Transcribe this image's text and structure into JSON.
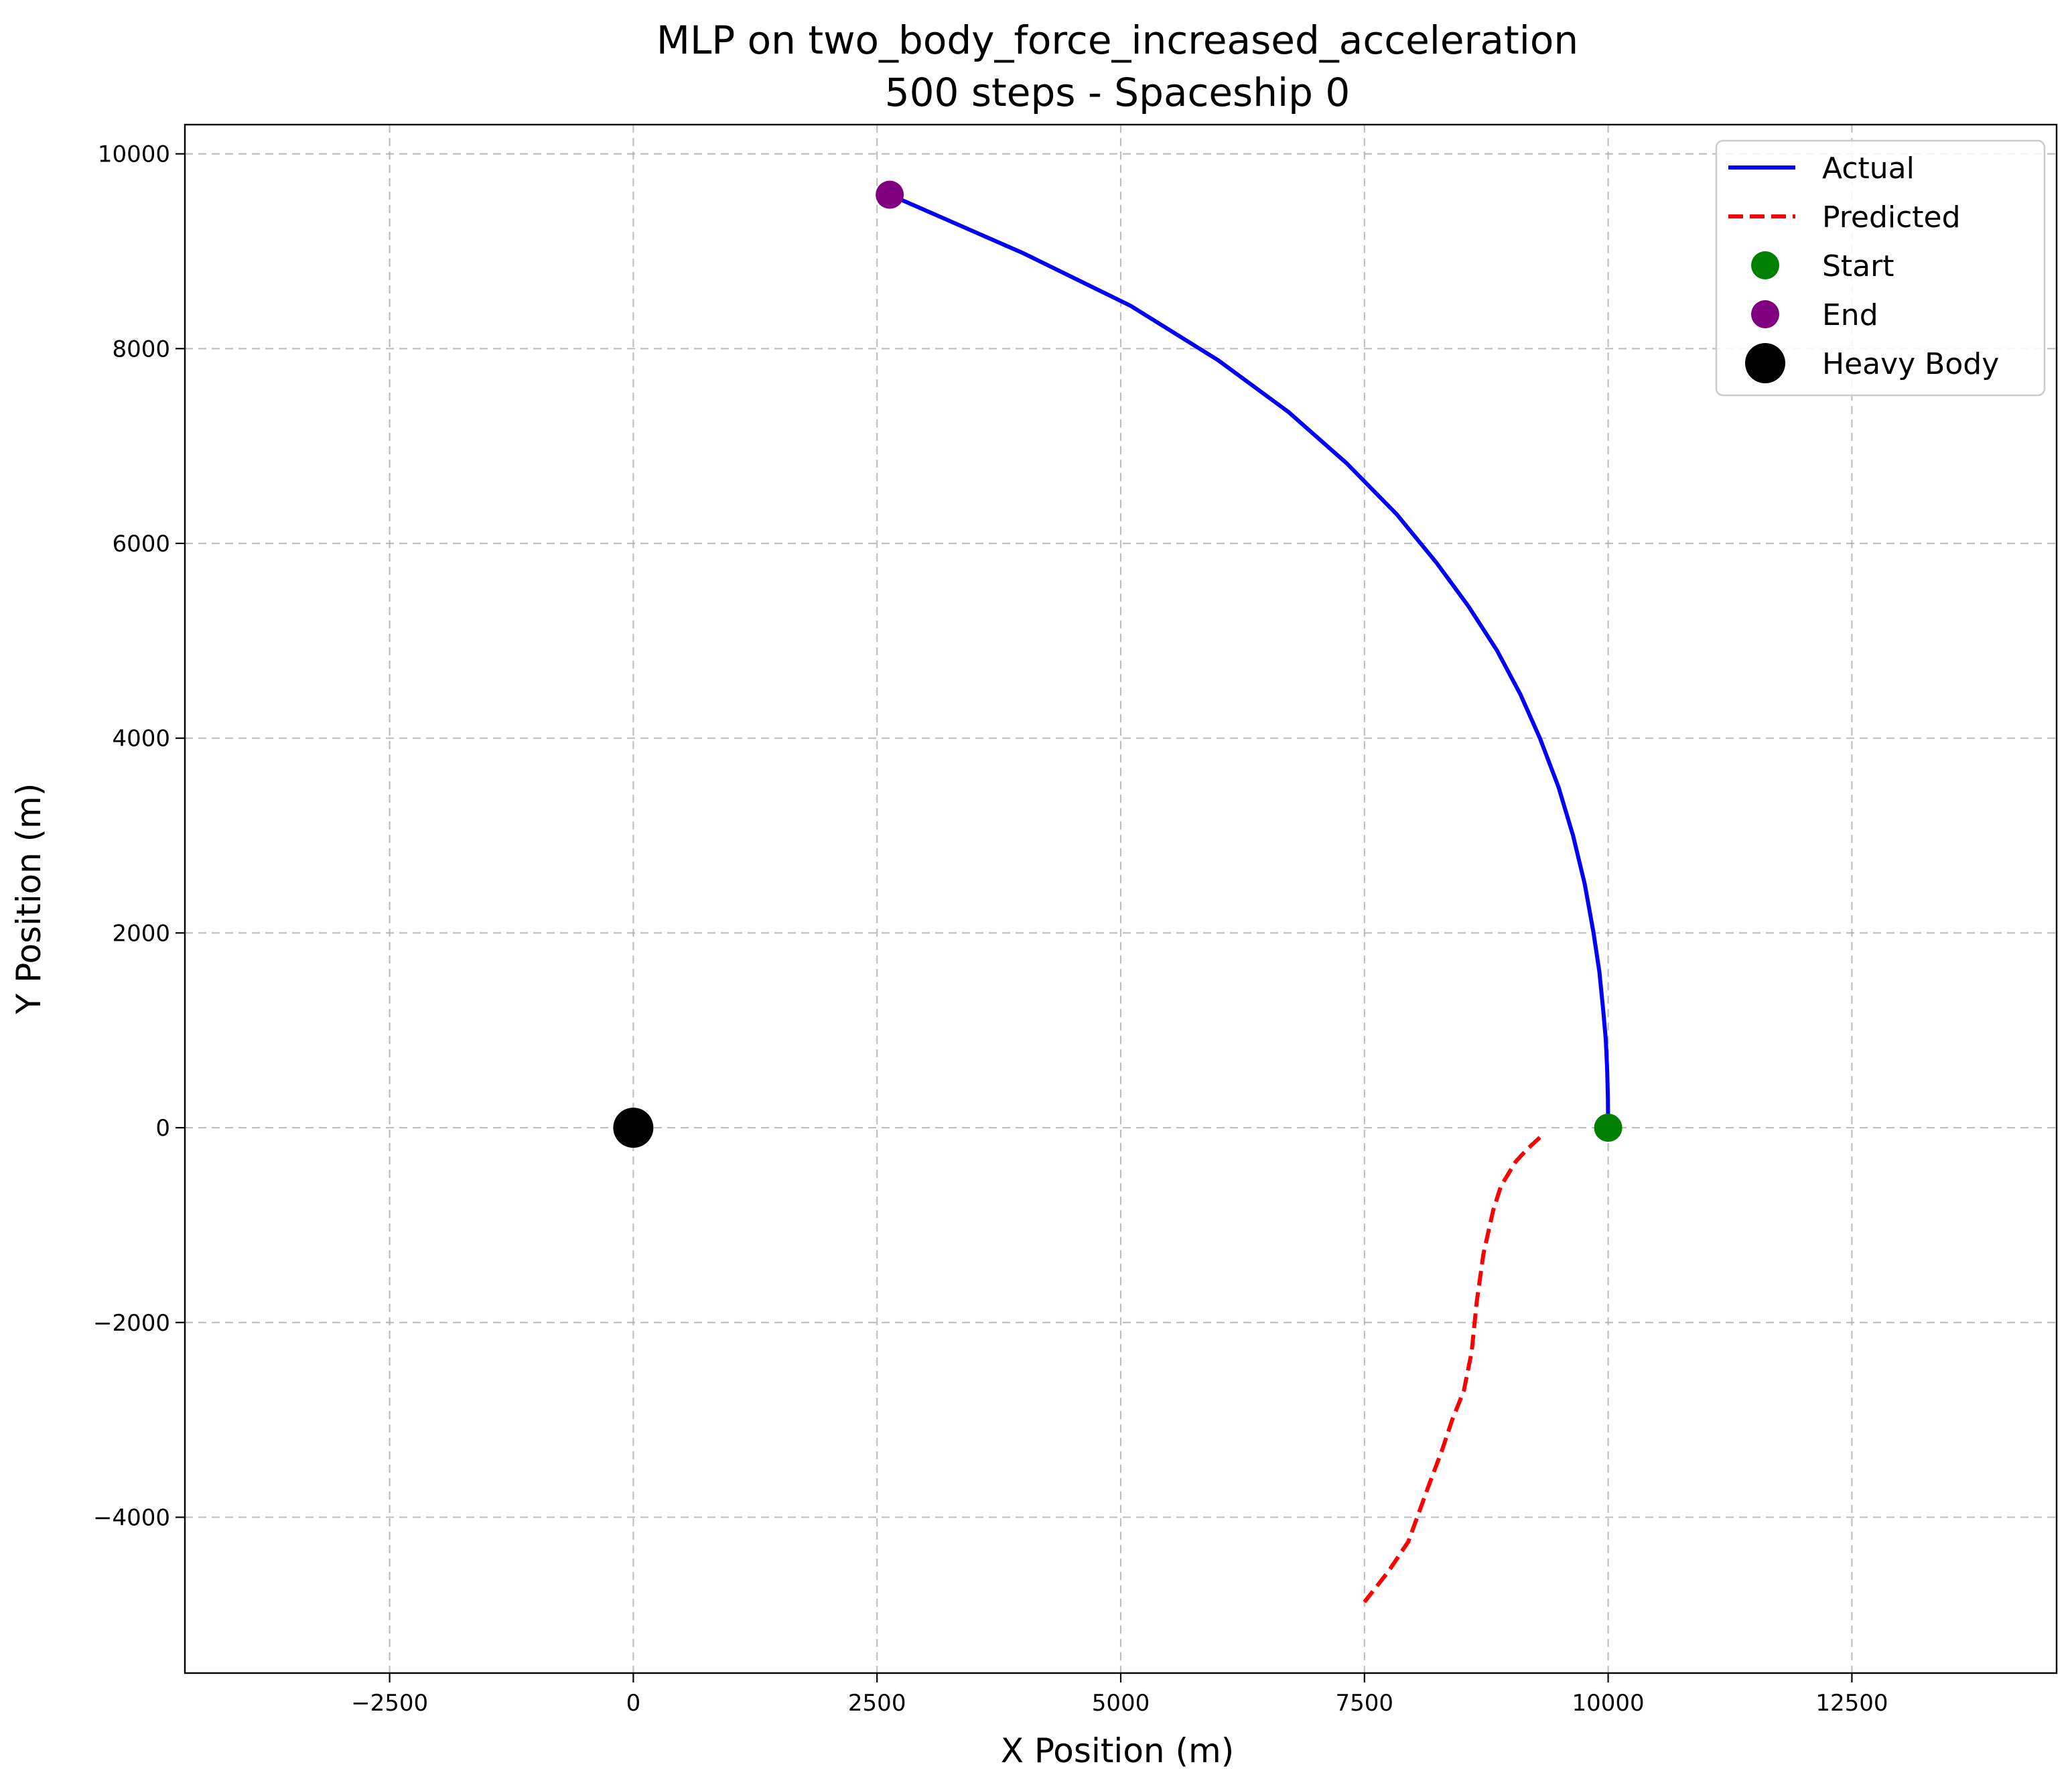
{
  "chart_data": {
    "type": "line",
    "title": "MLP on two_body_force_increased_acceleration",
    "subtitle": "500 steps - Spaceship 0",
    "xlabel": "X Position (m)",
    "ylabel": "Y Position (m)",
    "xlim": [
      -4600,
      14600
    ],
    "ylim": [
      -5600,
      10300
    ],
    "xticks": [
      -2500,
      0,
      2500,
      5000,
      7500,
      10000,
      12500
    ],
    "xtick_labels": [
      "−2500",
      "0",
      "2500",
      "5000",
      "7500",
      "10000",
      "12500"
    ],
    "yticks": [
      -4000,
      -2000,
      0,
      2000,
      4000,
      6000,
      8000,
      10000
    ],
    "ytick_labels": [
      "−4000",
      "−2000",
      "0",
      "2000",
      "4000",
      "6000",
      "8000",
      "10000"
    ],
    "grid": true,
    "legend_position": "top-right",
    "series": [
      {
        "name": "Actual",
        "style": "solid",
        "color": "#0000ff",
        "x": [
          10000,
          9997,
          9990,
          9976,
          9950,
          9910,
          9850,
          9760,
          9640,
          9490,
          9300,
          9100,
          8860,
          8570,
          8240,
          7830,
          7320,
          6720,
          6000,
          5100,
          4000,
          2630
        ],
        "y": [
          0,
          300,
          600,
          900,
          1200,
          1600,
          2000,
          2500,
          3000,
          3500,
          4000,
          4450,
          4900,
          5350,
          5800,
          6300,
          6820,
          7350,
          7880,
          8440,
          8980,
          9580
        ]
      },
      {
        "name": "Predicted",
        "style": "dashed",
        "color": "#ff0000",
        "x": [
          9300,
          9170,
          9050,
          8900,
          8820,
          8720,
          8650,
          8600,
          8520,
          8400,
          8300,
          8150,
          7950,
          7750,
          7500
        ],
        "y": [
          -100,
          -220,
          -350,
          -600,
          -850,
          -1300,
          -1800,
          -2300,
          -2700,
          -3000,
          -3300,
          -3700,
          -4250,
          -4550,
          -4870
        ]
      },
      {
        "name": "Start",
        "type": "scatter",
        "color": "#008000",
        "x": [
          10000
        ],
        "y": [
          0
        ]
      },
      {
        "name": "End",
        "type": "scatter",
        "color": "#800080",
        "x": [
          2630
        ],
        "y": [
          9580
        ]
      },
      {
        "name": "Heavy Body",
        "type": "scatter",
        "color": "#000000",
        "x": [
          0
        ],
        "y": [
          0
        ]
      }
    ]
  }
}
